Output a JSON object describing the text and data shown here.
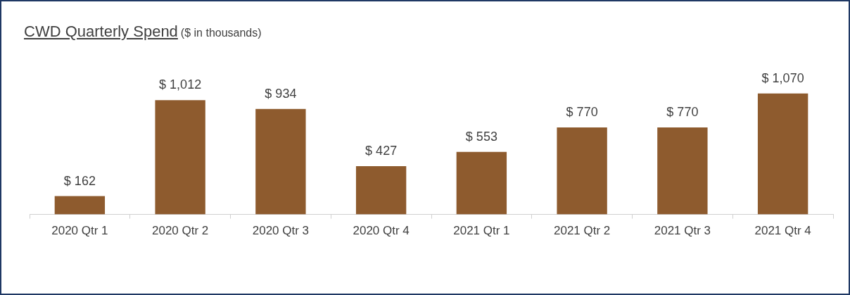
{
  "chart_data": {
    "type": "bar",
    "title": "CWD Quarterly Spend",
    "subtitle": "($ in thousands)",
    "categories": [
      "2020 Qtr 1",
      "2020 Qtr 2",
      "2020 Qtr 3",
      "2020 Qtr 4",
      "2021 Qtr 1",
      "2021 Qtr 2",
      "2021 Qtr 3",
      "2021 Qtr 4"
    ],
    "values": [
      162,
      1012,
      934,
      427,
      553,
      770,
      770,
      1070
    ],
    "value_labels": [
      "$ 162",
      "$ 1,012",
      "$ 934",
      "$ 427",
      "$ 553",
      "$ 770",
      "$ 770",
      "$ 1,070"
    ],
    "color": "#8e5b2e",
    "grid": false,
    "legend": false
  }
}
